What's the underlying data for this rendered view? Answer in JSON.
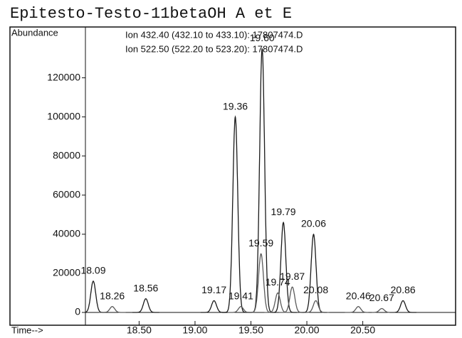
{
  "chart_data": {
    "type": "chromatogram",
    "title": "Epitesto-Testo-11betaOH A et E",
    "y_label": "Abundance",
    "x_label": "Time-->",
    "annotations": [
      "Ion 432.40 (432.10 to 433.10): 17807474.D",
      "Ion 522.50 (522.20 to 523.20): 17807474.D"
    ],
    "xlim": [
      18.02,
      21.33
    ],
    "ylim": [
      0,
      146000
    ],
    "xticks": [
      {
        "value": 18.5,
        "label": "18.50"
      },
      {
        "value": 19,
        "label": "19.00"
      },
      {
        "value": 19.5,
        "label": "19.50"
      },
      {
        "value": 20,
        "label": "20.00"
      },
      {
        "value": 20.5,
        "label": "20.50"
      }
    ],
    "yticks": [
      0,
      20000,
      40000,
      60000,
      80000,
      100000,
      120000
    ],
    "series": [
      {
        "color": "#1a1a1a",
        "x": [
          18.09,
          18.56,
          19.17,
          19.36,
          19.6,
          19.79,
          20.06,
          20.86
        ],
        "x_labels": [
          "18.09",
          "18.56",
          "19.17",
          "19.36",
          "19.60",
          "19.79",
          "20.06",
          "20.86"
        ],
        "values": [
          16000,
          7000,
          6000,
          100000,
          135000,
          46000,
          40000,
          6000
        ]
      },
      {
        "color": "#5a5a5a",
        "x": [
          18.26,
          19.41,
          19.59,
          19.74,
          19.87,
          20.08,
          20.46,
          20.67
        ],
        "x_labels": [
          "18.26",
          "19.41",
          "19.59",
          "19.74",
          "19.87",
          "20.08",
          "20.46",
          "20.67"
        ],
        "values": [
          3000,
          3000,
          30000,
          10000,
          13000,
          6000,
          3000,
          2000
        ]
      }
    ]
  }
}
